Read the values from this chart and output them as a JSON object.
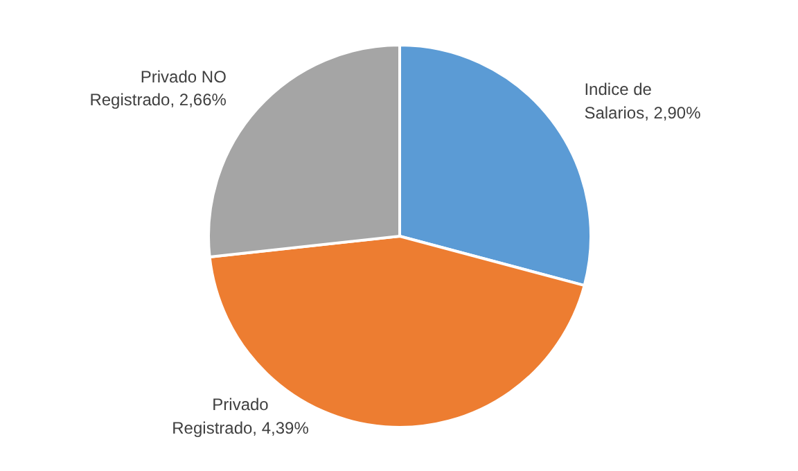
{
  "chart_data": {
    "type": "pie",
    "categories": [
      "Indice de Salarios",
      "Privado Registrado",
      "Privado NO Registrado"
    ],
    "values": [
      2.9,
      4.39,
      2.66
    ],
    "value_labels": [
      "2,90%",
      "4,39%",
      "2,66%"
    ],
    "colors": [
      "#5b9bd5",
      "#ed7d31",
      "#a5a5a5"
    ],
    "legend": false
  }
}
